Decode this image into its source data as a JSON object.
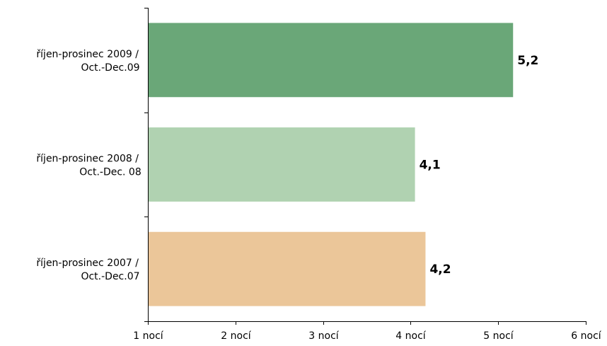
{
  "chart_data": {
    "type": "bar",
    "orientation": "horizontal",
    "title": "",
    "xlabel": "",
    "ylabel": "",
    "xlim": [
      1,
      6
    ],
    "x_ticks": [
      {
        "value": 1,
        "label": "1 nocí"
      },
      {
        "value": 2,
        "label": "2 nocí"
      },
      {
        "value": 3,
        "label": "3 nocí"
      },
      {
        "value": 4,
        "label": "4 nocí"
      },
      {
        "value": 5,
        "label": "5 nocí"
      },
      {
        "value": 6,
        "label": "6 nocí"
      }
    ],
    "categories": [
      {
        "line1": "říjen-prosinec 2009 /",
        "line2": "Oct.-Dec.09"
      },
      {
        "line1": "říjen-prosinec 2008 /",
        "line2": "Oct.-Dec. 08"
      },
      {
        "line1": "říjen-prosinec 2007 /",
        "line2": "Oct.-Dec.07"
      }
    ],
    "values": [
      5.17,
      4.05,
      4.17
    ],
    "data_labels": [
      "5,2",
      "4,1",
      "4,2"
    ],
    "colors": [
      "#6aa778",
      "#b0d2b1",
      "#ebc699"
    ],
    "grid": false,
    "legend": "none"
  }
}
